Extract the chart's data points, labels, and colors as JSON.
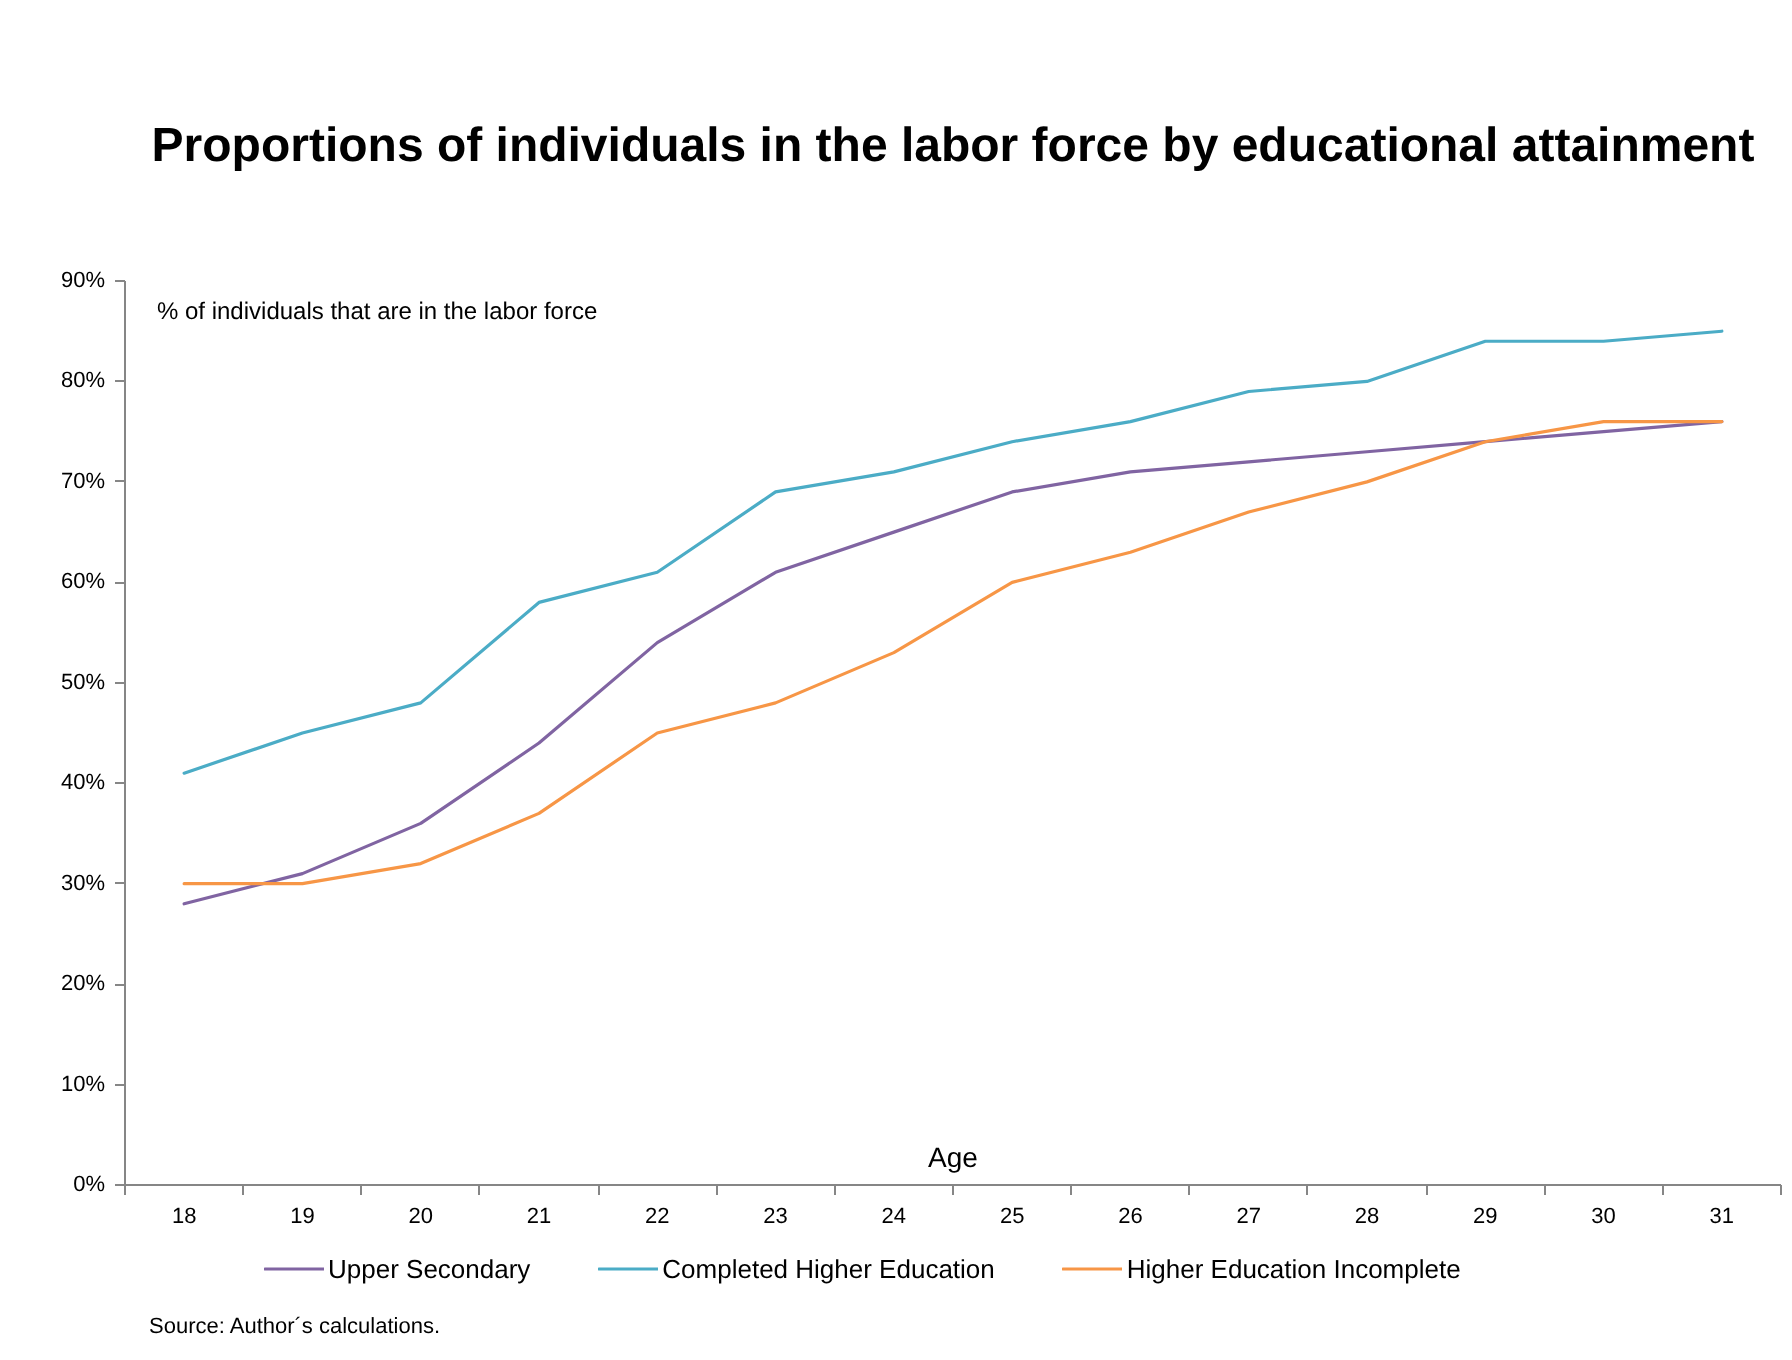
{
  "chart_data": {
    "type": "line",
    "title": "Proportions of individuals in the labor force by educational attainment",
    "xlabel": "Age",
    "annotations": [
      "% of individuals that are in the labor force",
      "Source: Author´s calculations."
    ],
    "categories": [
      "18",
      "19",
      "20",
      "21",
      "22",
      "23",
      "24",
      "25",
      "26",
      "27",
      "28",
      "29",
      "30",
      "31"
    ],
    "series": [
      {
        "name": "Upper Secondary",
        "color": "#8064a2",
        "values": [
          28,
          31,
          36,
          44,
          54,
          61,
          65,
          69,
          71,
          72,
          73,
          74,
          75,
          76
        ]
      },
      {
        "name": "Completed Higher Education",
        "color": "#4bacc6",
        "values": [
          41,
          45,
          48,
          58,
          61,
          69,
          71,
          74,
          76,
          79,
          80,
          84,
          84,
          85
        ]
      },
      {
        "name": "Higher Education Incomplete",
        "color": "#f79646",
        "values": [
          30,
          30,
          32,
          37,
          45,
          48,
          53,
          60,
          63,
          67,
          70,
          74,
          76,
          76
        ]
      }
    ],
    "ylim": [
      0,
      90
    ],
    "yticks": [
      {
        "value": 0,
        "label": "0%"
      },
      {
        "value": 10,
        "label": "10%"
      },
      {
        "value": 20,
        "label": "20%"
      },
      {
        "value": 30,
        "label": "30%"
      },
      {
        "value": 40,
        "label": "40%"
      },
      {
        "value": 50,
        "label": "50%"
      },
      {
        "value": 60,
        "label": "60%"
      },
      {
        "value": 70,
        "label": "70%"
      },
      {
        "value": 80,
        "label": "80%"
      },
      {
        "value": 90,
        "label": "90%"
      }
    ],
    "grid": false,
    "legend": "bottom",
    "line_style": "solid"
  }
}
